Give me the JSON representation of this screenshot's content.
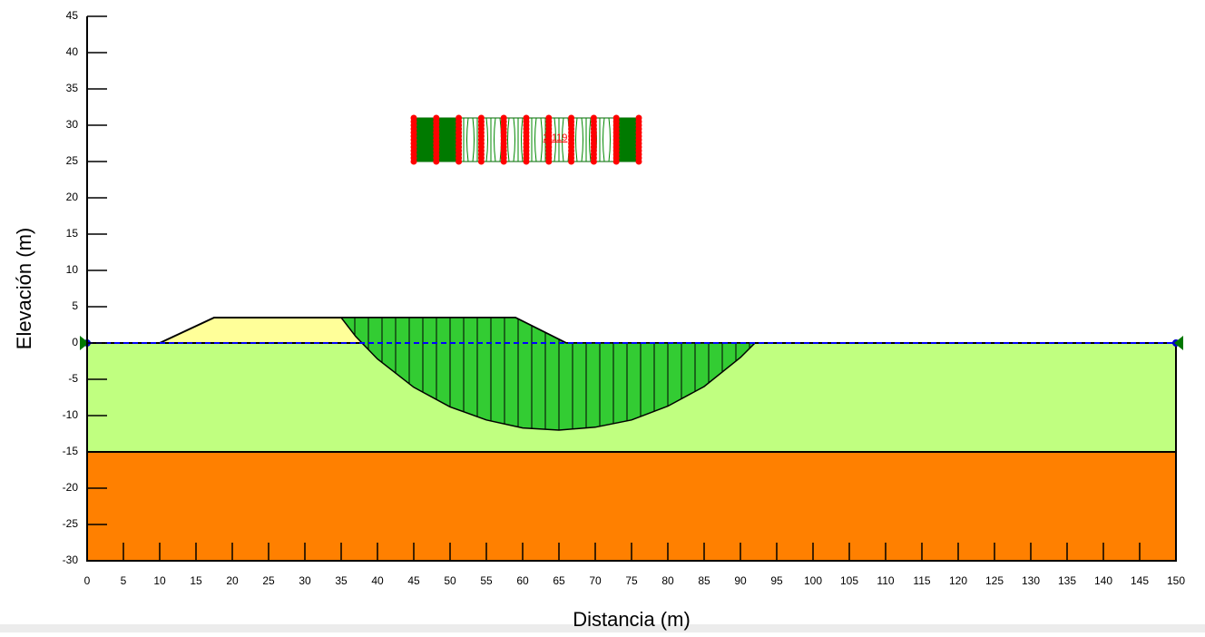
{
  "chart_data": {
    "type": "slope-section",
    "x_label": "Distancia (m)",
    "y_label": "Elevación (m)",
    "xlim": [
      0,
      150
    ],
    "ylim": [
      -30,
      45
    ],
    "xticks": [
      0,
      5,
      10,
      15,
      20,
      25,
      30,
      35,
      40,
      45,
      50,
      55,
      60,
      65,
      70,
      75,
      80,
      85,
      90,
      95,
      100,
      105,
      110,
      115,
      120,
      125,
      130,
      135,
      140,
      145,
      150
    ],
    "yticks": [
      -30,
      -25,
      -20,
      -15,
      -10,
      -5,
      0,
      5,
      10,
      15,
      20,
      25,
      30,
      35,
      40,
      45
    ],
    "regions": [
      {
        "color": "#ff8000",
        "x": [
          0,
          150,
          150,
          0
        ],
        "y": [
          -30,
          -30,
          -15,
          -15
        ]
      },
      {
        "color": "#c0ff80",
        "x": [
          0,
          150,
          150,
          0
        ],
        "y": [
          -15,
          -15,
          0,
          0
        ]
      },
      {
        "color": "#ffff99",
        "x": [
          10,
          17.5,
          59,
          66
        ],
        "y": [
          0,
          3.5,
          3.5,
          0
        ]
      }
    ],
    "slip_mass": {
      "color": "#33cc33",
      "x": [
        35,
        37,
        40,
        45,
        50,
        55,
        60,
        65,
        70,
        75,
        80,
        85,
        90,
        92,
        66,
        59
      ],
      "y": [
        3.5,
        0.9,
        -2.2,
        -6.1,
        -8.8,
        -10.6,
        -11.7,
        -12,
        -11.6,
        -10.6,
        -8.7,
        -6,
        -2,
        0,
        0,
        3.5
      ]
    },
    "water_table": {
      "color": "#0000ff",
      "x": [
        0,
        150
      ],
      "y": [
        0,
        0
      ]
    },
    "slip_center_grid": {
      "x": [
        45,
        76
      ],
      "y": [
        25,
        31
      ]
    },
    "min_factor_of_safety": 2.119
  }
}
